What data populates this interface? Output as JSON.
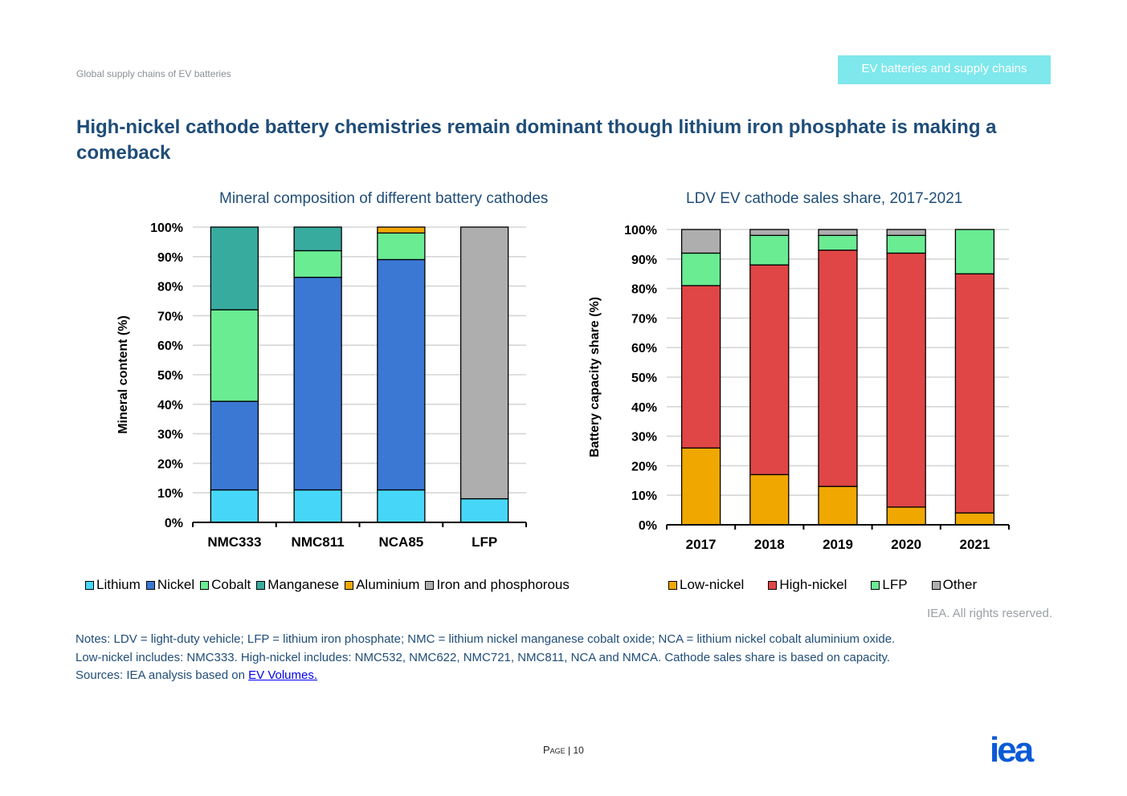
{
  "header": {
    "left": "Global supply chains of EV batteries",
    "right": "EV batteries and supply chains"
  },
  "title": "High-nickel cathode battery chemistries remain dominant though lithium iron phosphate is making a comeback",
  "colors": {
    "lithium": "#46d7f8",
    "nickel": "#3b78d4",
    "cobalt": "#6aec93",
    "manganese": "#38ab9f",
    "aluminium": "#f0a800",
    "iron_phosphorous": "#aeaeae",
    "low_nickel": "#f0a800",
    "high_nickel": "#e04646",
    "lfp": "#6aec93",
    "other": "#aeaeae",
    "title_blue": "#1f4d78"
  },
  "chart_data": [
    {
      "type": "bar",
      "stacked": true,
      "title": "Mineral composition of different battery cathodes",
      "xlabel": "",
      "ylabel": "Mineral content (%)",
      "ylim": [
        0,
        100
      ],
      "yticks": [
        "0%",
        "10%",
        "20%",
        "30%",
        "40%",
        "50%",
        "60%",
        "70%",
        "80%",
        "90%",
        "100%"
      ],
      "categories": [
        "NMC333",
        "NMC811",
        "NCA85",
        "LFP"
      ],
      "series": [
        {
          "name": "Lithium",
          "values": [
            11,
            11,
            11,
            8
          ],
          "color": "#46d7f8"
        },
        {
          "name": "Nickel",
          "values": [
            30,
            72,
            78,
            0
          ],
          "color": "#3b78d4"
        },
        {
          "name": "Cobalt",
          "values": [
            31,
            9,
            9,
            0
          ],
          "color": "#6aec93"
        },
        {
          "name": "Manganese",
          "values": [
            28,
            8,
            0,
            0
          ],
          "color": "#38ab9f"
        },
        {
          "name": "Aluminium",
          "values": [
            0,
            0,
            2,
            0
          ],
          "color": "#f0a800"
        },
        {
          "name": "Iron and phosphorous",
          "values": [
            0,
            0,
            0,
            92
          ],
          "color": "#aeaeae"
        }
      ],
      "legend": "bottom",
      "grid": true
    },
    {
      "type": "bar",
      "stacked": true,
      "title": "LDV EV cathode sales share, 2017-2021",
      "xlabel": "",
      "ylabel": "Battery capacity share (%)",
      "ylim": [
        0,
        100
      ],
      "yticks": [
        "0%",
        "10%",
        "20%",
        "30%",
        "40%",
        "50%",
        "60%",
        "70%",
        "80%",
        "90%",
        "100%"
      ],
      "categories": [
        "2017",
        "2018",
        "2019",
        "2020",
        "2021"
      ],
      "series": [
        {
          "name": "Low-nickel",
          "values": [
            26,
            17,
            13,
            6,
            4
          ],
          "color": "#f0a800"
        },
        {
          "name": "High-nickel",
          "values": [
            55,
            71,
            80,
            86,
            81
          ],
          "color": "#e04646"
        },
        {
          "name": "LFP",
          "values": [
            11,
            10,
            5,
            6,
            15
          ],
          "color": "#6aec93"
        },
        {
          "name": "Other",
          "values": [
            8,
            2,
            2,
            2,
            0
          ],
          "color": "#aeaeae"
        }
      ],
      "legend": "bottom",
      "grid": true
    }
  ],
  "rights": "IEA. All rights reserved.",
  "notes": {
    "line1": "Notes: LDV = light-duty vehicle; LFP = lithium iron phosphate; NMC = lithium nickel manganese cobalt oxide; NCA = lithium nickel cobalt aluminium oxide.",
    "line2": "Low-nickel includes: NMC333. High-nickel includes: NMC532, NMC622, NMC721, NMC811, NCA and NMCA. Cathode sales share is based on capacity.",
    "sources_prefix": "Sources: IEA analysis based on ",
    "sources_link": "EV Volumes."
  },
  "footer": {
    "page_word": "Page",
    "separator": "|",
    "page_number": "10",
    "logo": "iea"
  }
}
